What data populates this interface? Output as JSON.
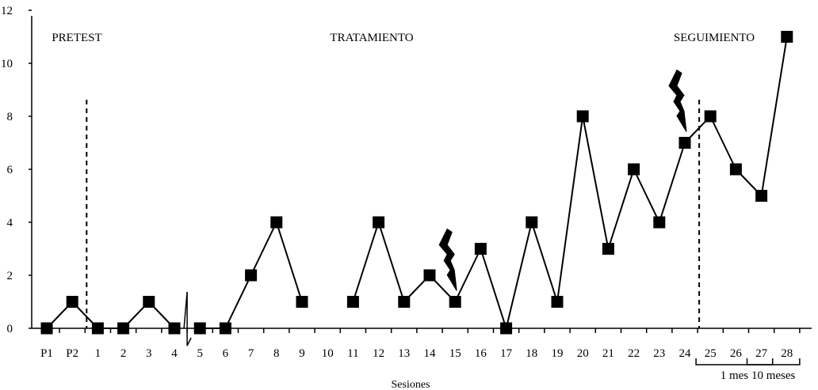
{
  "chart_data": {
    "type": "line",
    "xlabel": "Sesiones",
    "ylabel": "",
    "ylim": [
      0,
      12
    ],
    "y_ticks": [
      "0",
      "2",
      "4",
      "6",
      "8",
      "10",
      "12"
    ],
    "categories": [
      "P1",
      "P2",
      "1",
      "2",
      "3",
      "4",
      "5",
      "6",
      "7",
      "8",
      "9",
      "10",
      "11",
      "12",
      "13",
      "14",
      "15",
      "16",
      "17",
      "18",
      "19",
      "20",
      "21",
      "22",
      "23",
      "24",
      "25",
      "26",
      "27",
      "28"
    ],
    "series": [
      {
        "values": [
          0,
          1,
          0,
          0,
          1,
          0,
          0,
          0,
          2,
          4,
          1,
          null,
          1,
          4,
          1,
          2,
          1,
          3,
          0,
          4,
          1,
          8,
          3,
          6,
          4,
          7,
          8,
          6,
          5,
          11
        ],
        "breaks_after": [
          "4",
          "9"
        ],
        "marker": "square",
        "color": "#000000"
      }
    ],
    "phases": [
      "PRETEST",
      "TRATAMIENTO",
      "SEGUIMIENTO"
    ],
    "phase_boundaries_after": [
      "P2",
      "24"
    ],
    "lightning_markers_near": [
      "15",
      "24"
    ],
    "follow_up_brackets": [
      {
        "label": "1 mes",
        "from": "25",
        "to": "27"
      },
      {
        "label": "10 meses",
        "from": "27",
        "to": "28"
      }
    ],
    "grid": false,
    "legend": "none"
  }
}
